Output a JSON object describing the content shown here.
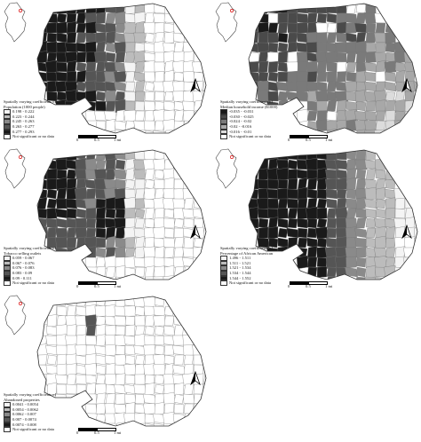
{
  "panels": [
    {
      "id": "population",
      "legend": {
        "title_lines": [
          "Spatially varying coefficients of",
          "Population (1000 people)"
        ],
        "classes": [
          {
            "label": "0.198 - 0.222",
            "color": "#f4f4f4"
          },
          {
            "label": "0.223 - 0.244",
            "color": "#bcbcbc"
          },
          {
            "label": "0.245 - 0.263",
            "color": "#8a8a8a"
          },
          {
            "label": "0.263 - 0.277",
            "color": "#555555"
          },
          {
            "label": "0.277 - 0.293",
            "color": "#1a1a1a"
          }
        ],
        "nodata": {
          "label": "Not significant or no data",
          "color": "#ffffff"
        }
      },
      "scale": {
        "labels": [
          "0",
          "0.5",
          "1 mi"
        ]
      },
      "north_label": "N",
      "pattern": "west-dark"
    },
    {
      "id": "income",
      "legend": {
        "title_lines": [
          "Spatially varying coefficients of",
          "Median household income ($1000)"
        ],
        "classes": [
          {
            "label": "-0.035 - -0.031",
            "color": "#1a1a1a"
          },
          {
            "label": "-0.030 - -0.025",
            "color": "#4a4a4a"
          },
          {
            "label": "-0.024 - -0.02",
            "color": "#7a7a7a"
          },
          {
            "label": "-0.02 - -0.016",
            "color": "#a8a8a8"
          },
          {
            "label": "-0.016 - -0.01",
            "color": "#dcdcdc"
          }
        ],
        "nodata": {
          "label": "Not significant or no data",
          "color": "#ffffff"
        }
      },
      "scale": {
        "labels": [
          "0",
          "0.5",
          "1 mi"
        ]
      },
      "north_label": "N",
      "pattern": "mixed"
    },
    {
      "id": "tobacco",
      "legend": {
        "title_lines": [
          "Spatially varying coefficients of",
          "Tobacco selling outlets"
        ],
        "classes": [
          {
            "label": "0.059 - 0.067",
            "color": "#f4f4f4"
          },
          {
            "label": "0.067 - 0.076",
            "color": "#bcbcbc"
          },
          {
            "label": "0.076 - 0.083",
            "color": "#8a8a8a"
          },
          {
            "label": "0.083 - 0.09",
            "color": "#555555"
          },
          {
            "label": "0.09 - 0.111",
            "color": "#1a1a1a"
          }
        ],
        "nodata": {
          "label": "Not significant or no data",
          "color": "#ffffff"
        }
      },
      "scale": {
        "labels": [
          "0",
          "0.5",
          "1 mi"
        ]
      },
      "north_label": "N",
      "pattern": "west-center"
    },
    {
      "id": "african-american",
      "legend": {
        "title_lines": [
          "Spatially varying coefficients of",
          "Percentage of African American"
        ],
        "classes": [
          {
            "label": "1.496 - 1.511",
            "color": "#f4f4f4"
          },
          {
            "label": "1.511 - 1.521",
            "color": "#bcbcbc"
          },
          {
            "label": "1.521 - 1.534",
            "color": "#8a8a8a"
          },
          {
            "label": "1.534 - 1.544",
            "color": "#555555"
          },
          {
            "label": "1.544 - 1.552",
            "color": "#1a1a1a"
          }
        ],
        "nodata": {
          "label": "Not significant or no data",
          "color": "#ffffff"
        }
      },
      "scale": {
        "labels": [
          "0",
          "0.5",
          "1 mi"
        ]
      },
      "north_label": "N",
      "pattern": "west-gradient"
    },
    {
      "id": "abandoned",
      "legend": {
        "title_lines": [
          "Spatially varying coefficients of",
          "Abandoned properties"
        ],
        "classes": [
          {
            "label": "0.0041 - 0.0054",
            "color": "#f4f4f4"
          },
          {
            "label": "0.0054 - 0.0062",
            "color": "#bcbcbc"
          },
          {
            "label": "0.0062 - 0.007",
            "color": "#8a8a8a"
          },
          {
            "label": "0.007 - 0.0074",
            "color": "#555555"
          },
          {
            "label": "0.0074 - 0.008",
            "color": "#1a1a1a"
          }
        ],
        "nodata": {
          "label": "Not significant or no data",
          "color": "#ffffff"
        }
      },
      "scale": {
        "labels": [
          "0",
          "0.5",
          "1 mi"
        ]
      },
      "north_label": "N",
      "pattern": "sparse"
    }
  ]
}
